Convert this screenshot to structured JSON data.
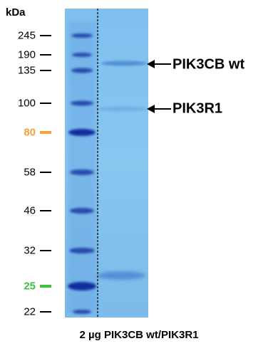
{
  "marker": {
    "unit": "kDa",
    "ladder": [
      {
        "label": "245",
        "color": "#000000",
        "bold": false
      },
      {
        "label": "190",
        "color": "#000000",
        "bold": false
      },
      {
        "label": "135",
        "color": "#000000",
        "bold": false
      },
      {
        "label": "100",
        "color": "#000000",
        "bold": false
      },
      {
        "label": "80",
        "color": "#f7a13a",
        "bold": true
      },
      {
        "label": "58",
        "color": "#000000",
        "bold": false
      },
      {
        "label": "46",
        "color": "#000000",
        "bold": false
      },
      {
        "label": "32",
        "color": "#000000",
        "bold": false
      },
      {
        "label": "25",
        "color": "#3fc23a",
        "bold": true
      },
      {
        "label": "22",
        "color": "#000000",
        "bold": false
      }
    ]
  },
  "bands": [
    {
      "label": "PIK3CB wt"
    },
    {
      "label": "PIK3R1"
    }
  ],
  "lane_caption": "2 µg PIK3CB  wt/PIK3R1",
  "colors": {
    "gel_background": "#86c4ee",
    "ladder_band": "#10289a",
    "sample_band": "#4c86d3"
  }
}
